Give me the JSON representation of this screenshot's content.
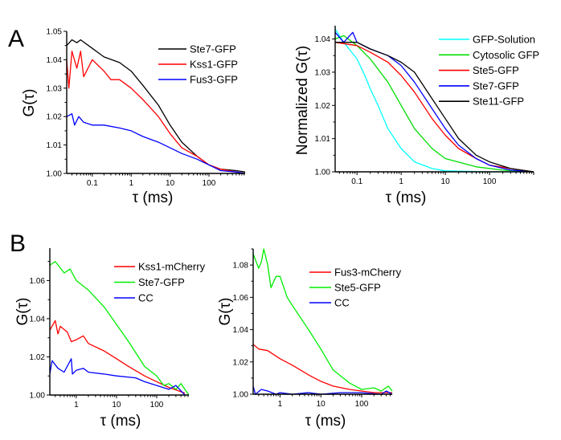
{
  "panel_labels": [
    "A",
    "B"
  ],
  "chart_data": [
    {
      "type": "line",
      "panel": "A",
      "xlabel": "τ (ms)",
      "ylabel": "G(τ)",
      "xscale": "log",
      "xlim": [
        0.022,
        850
      ],
      "ylim": [
        1.0,
        1.05
      ],
      "xticks": [
        0.1,
        1,
        10,
        100
      ],
      "xtick_labels": [
        "0.1",
        "1",
        "10",
        "100"
      ],
      "yticks": [
        1.0,
        1.01,
        1.02,
        1.03,
        1.04,
        1.05
      ],
      "ytick_labels": [
        "1.00",
        "1.01",
        "1.02",
        "1.03",
        "1.04",
        "1.05"
      ],
      "grid": false,
      "legend": "top-right",
      "series": [
        {
          "name": "Ste7-GFP",
          "color": "#000000",
          "x": [
            0.022,
            0.03,
            0.04,
            0.05,
            0.1,
            0.2,
            0.5,
            1,
            2,
            5,
            10,
            20,
            50,
            100,
            200,
            500,
            850
          ],
          "y": [
            1.045,
            1.047,
            1.046,
            1.047,
            1.044,
            1.041,
            1.039,
            1.036,
            1.031,
            1.024,
            1.017,
            1.011,
            1.006,
            1.003,
            1.0015,
            1.001,
            1.0005
          ]
        },
        {
          "name": "Kss1-GFP",
          "color": "#ff0000",
          "x": [
            0.022,
            0.025,
            0.03,
            0.04,
            0.05,
            0.06,
            0.1,
            0.2,
            0.3,
            0.5,
            1,
            2,
            5,
            10,
            20,
            50,
            100,
            200,
            500,
            850
          ],
          "y": [
            1.04,
            1.03,
            1.043,
            1.037,
            1.043,
            1.034,
            1.04,
            1.036,
            1.033,
            1.033,
            1.03,
            1.026,
            1.02,
            1.014,
            1.009,
            1.006,
            1.003,
            1.0015,
            1.0005,
            1.0
          ]
        },
        {
          "name": "Fus3-GFP",
          "color": "#0000ff",
          "x": [
            0.022,
            0.03,
            0.035,
            0.045,
            0.06,
            0.1,
            0.2,
            0.5,
            1,
            2,
            5,
            10,
            20,
            50,
            100,
            200,
            500,
            850
          ],
          "y": [
            1.02,
            1.021,
            1.017,
            1.02,
            1.018,
            1.017,
            1.017,
            1.016,
            1.015,
            1.013,
            1.011,
            1.009,
            1.007,
            1.005,
            1.003,
            1.001,
            1.0005,
            1.0
          ]
        }
      ]
    },
    {
      "type": "line",
      "panel": "A",
      "xlabel": "τ (ms)",
      "ylabel": "Normalized G(τ)",
      "xscale": "log",
      "xlim": [
        0.032,
        1000
      ],
      "ylim": [
        1.0,
        1.044
      ],
      "xticks": [
        0.1,
        1,
        10,
        100
      ],
      "xtick_labels": [
        "0.1",
        "1",
        "10",
        "100"
      ],
      "yticks": [
        1.0,
        1.01,
        1.02,
        1.03,
        1.04
      ],
      "ytick_labels": [
        "1.00",
        "1.01",
        "1.02",
        "1.03",
        "1.04"
      ],
      "grid": false,
      "legend": "top-right",
      "series": [
        {
          "name": "GFP-Solution",
          "color": "#00ffff",
          "x": [
            0.032,
            0.05,
            0.1,
            0.15,
            0.2,
            0.3,
            0.5,
            1,
            2,
            5,
            10,
            100,
            1000
          ],
          "y": [
            1.043,
            1.039,
            1.034,
            1.029,
            1.025,
            1.02,
            1.013,
            1.007,
            1.003,
            1.001,
            1.0003,
            1.0,
            1.0
          ]
        },
        {
          "name": "Cytosolic GFP",
          "color": "#00dd00",
          "x": [
            0.032,
            0.05,
            0.1,
            0.2,
            0.5,
            1,
            2,
            5,
            10,
            50,
            200,
            1000
          ],
          "y": [
            1.04,
            1.041,
            1.038,
            1.034,
            1.027,
            1.02,
            1.013,
            1.007,
            1.004,
            1.0015,
            1.0005,
            1.0
          ]
        },
        {
          "name": "Ste5-GFP",
          "color": "#ff0000",
          "x": [
            0.032,
            0.1,
            0.2,
            0.5,
            1,
            2,
            5,
            10,
            20,
            50,
            100,
            300,
            1000
          ],
          "y": [
            1.039,
            1.038,
            1.036,
            1.033,
            1.029,
            1.024,
            1.016,
            1.011,
            1.007,
            1.004,
            1.002,
            1.001,
            1.0
          ]
        },
        {
          "name": "Ste7-GFP",
          "color": "#0000ff",
          "x": [
            0.032,
            0.05,
            0.08,
            0.1,
            0.2,
            0.5,
            1,
            2,
            5,
            10,
            20,
            50,
            100,
            300,
            1000
          ],
          "y": [
            1.042,
            1.039,
            1.042,
            1.039,
            1.037,
            1.035,
            1.032,
            1.027,
            1.019,
            1.013,
            1.008,
            1.004,
            1.002,
            1.0005,
            1.0
          ]
        },
        {
          "name": "Ste11-GFP",
          "color": "#000000",
          "x": [
            0.032,
            0.1,
            0.2,
            0.5,
            1,
            2,
            5,
            10,
            20,
            50,
            100,
            300,
            1000
          ],
          "y": [
            1.039,
            1.039,
            1.037,
            1.035,
            1.033,
            1.03,
            1.022,
            1.016,
            1.01,
            1.005,
            1.003,
            1.001,
            1.0
          ]
        }
      ]
    },
    {
      "type": "line",
      "panel": "B",
      "xlabel": "τ (ms)",
      "ylabel": "G(τ)",
      "xscale": "log",
      "xlim": [
        0.22,
        630
      ],
      "ylim": [
        1.0,
        1.077
      ],
      "xticks": [
        1,
        10,
        100
      ],
      "xtick_labels": [
        "1",
        "10",
        "100"
      ],
      "yticks": [
        1.0,
        1.02,
        1.04,
        1.06
      ],
      "ytick_labels": [
        "1.00",
        "1.02",
        "1.04",
        "1.06"
      ],
      "grid": false,
      "legend": "top-right",
      "series": [
        {
          "name": "Kss1-mCherry",
          "color": "#ff0000",
          "x": [
            0.22,
            0.3,
            0.35,
            0.4,
            0.6,
            0.75,
            1,
            1.5,
            2,
            5,
            10,
            20,
            50,
            100,
            200,
            500
          ],
          "y": [
            1.034,
            1.039,
            1.032,
            1.036,
            1.033,
            1.028,
            1.029,
            1.031,
            1.027,
            1.023,
            1.019,
            1.015,
            1.01,
            1.007,
            1.004,
            1.001
          ]
        },
        {
          "name": "Ste7-GFP",
          "color": "#00ee00",
          "x": [
            0.22,
            0.3,
            0.5,
            0.7,
            1,
            2,
            5,
            10,
            20,
            50,
            100,
            150,
            200,
            300,
            400,
            630
          ],
          "y": [
            1.068,
            1.07,
            1.064,
            1.066,
            1.06,
            1.055,
            1.046,
            1.037,
            1.028,
            1.015,
            1.01,
            1.005,
            1.006,
            1.003,
            1.006,
            1.0
          ]
        },
        {
          "name": "CC",
          "color": "#0000ff",
          "x": [
            0.22,
            0.25,
            0.35,
            0.5,
            0.75,
            0.8,
            1,
            1.5,
            2,
            5,
            10,
            30,
            50,
            100,
            200,
            300,
            500
          ],
          "y": [
            1.011,
            1.018,
            1.014,
            1.012,
            1.019,
            1.011,
            1.013,
            1.014,
            1.012,
            1.011,
            1.01,
            1.009,
            1.007,
            1.005,
            1.003,
            1.005,
            1.0
          ]
        }
      ]
    },
    {
      "type": "line",
      "panel": "B",
      "xlabel": "τ (ms)",
      "ylabel": "G(τ)",
      "xscale": "log",
      "xlim": [
        0.22,
        560
      ],
      "ylim": [
        1.0,
        1.09
      ],
      "xticks": [
        1,
        10,
        100
      ],
      "xtick_labels": [
        "1",
        "10",
        "100"
      ],
      "yticks": [
        1.0,
        1.02,
        1.04,
        1.06,
        1.08
      ],
      "ytick_labels": [
        "1.00",
        "1.02",
        "1.04",
        "1.06",
        "1.08"
      ],
      "grid": false,
      "legend": "top-right",
      "series": [
        {
          "name": "Fus3-mCherry",
          "color": "#ff0000",
          "x": [
            0.22,
            0.3,
            0.5,
            1,
            2,
            5,
            10,
            20,
            50,
            100,
            200,
            560
          ],
          "y": [
            1.031,
            1.028,
            1.027,
            1.022,
            1.018,
            1.012,
            1.008,
            1.005,
            1.003,
            1.002,
            1.001,
            1.001
          ]
        },
        {
          "name": "Ste5-GFP",
          "color": "#00ee00",
          "x": [
            0.22,
            0.3,
            0.35,
            0.4,
            0.5,
            0.6,
            0.8,
            1,
            1.5,
            2,
            5,
            10,
            20,
            50,
            100,
            200,
            300,
            450,
            560
          ],
          "y": [
            1.087,
            1.078,
            1.082,
            1.09,
            1.08,
            1.066,
            1.073,
            1.073,
            1.06,
            1.055,
            1.04,
            1.028,
            1.015,
            1.007,
            1.003,
            1.004,
            1.002,
            1.005,
            1.002
          ]
        },
        {
          "name": "CC",
          "color": "#0000ff",
          "x": [
            0.22,
            0.25,
            0.35,
            0.5,
            0.8,
            1,
            2,
            5,
            10,
            30,
            100,
            300,
            400,
            560
          ],
          "y": [
            1.005,
            1.0,
            1.003,
            1.002,
            1.0,
            1.001,
            1.0,
            1.001,
            1.0,
            1.001,
            1.001,
            1.0,
            1.002,
            1.0
          ]
        }
      ]
    }
  ]
}
